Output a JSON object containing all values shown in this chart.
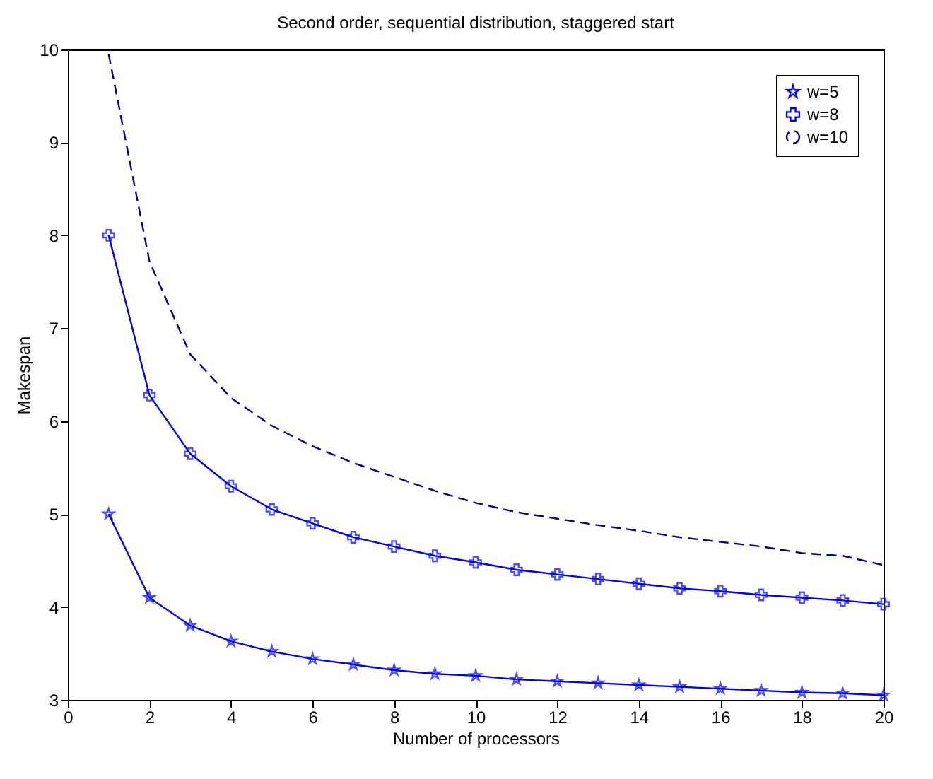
{
  "chart_data": {
    "type": "line",
    "title": "Second order, sequential distribution, staggered start",
    "xlabel": "Number of processors",
    "ylabel": "Makespan",
    "x": [
      1,
      2,
      3,
      4,
      5,
      6,
      7,
      8,
      9,
      10,
      11,
      12,
      13,
      14,
      15,
      16,
      17,
      18,
      19,
      20
    ],
    "xlim": [
      0,
      20
    ],
    "xticks": [
      0,
      2,
      4,
      6,
      8,
      10,
      12,
      14,
      16,
      18,
      20
    ],
    "ylim": [
      3,
      10
    ],
    "yticks": [
      3,
      4,
      5,
      6,
      7,
      8,
      9,
      10
    ],
    "legend": "top right",
    "grid": false,
    "series": [
      {
        "name": "w=5",
        "color": "#0000ff",
        "marker": "star",
        "line_style": "solid",
        "values": [
          5,
          4.1,
          3.8,
          3.63,
          3.52,
          3.44,
          3.38,
          3.32,
          3.28,
          3.26,
          3.22,
          3.2,
          3.18,
          3.16,
          3.14,
          3.12,
          3.1,
          3.08,
          3.07,
          3.05
        ]
      },
      {
        "name": "w=8",
        "color": "#0000ff",
        "marker": "cross",
        "line_style": "solid",
        "values": [
          8,
          6.28,
          5.65,
          5.3,
          5.05,
          4.9,
          4.75,
          4.65,
          4.55,
          4.48,
          4.4,
          4.35,
          4.3,
          4.25,
          4.2,
          4.17,
          4.13,
          4.1,
          4.07,
          4.03
        ]
      },
      {
        "name": "w=10",
        "color": "#00008b",
        "marker": "none",
        "line_style": "dashed",
        "values": [
          9.95,
          7.72,
          6.72,
          6.25,
          5.95,
          5.73,
          5.55,
          5.4,
          5.25,
          5.12,
          5.02,
          4.95,
          4.88,
          4.82,
          4.75,
          4.7,
          4.65,
          4.58,
          4.55,
          4.45
        ]
      }
    ]
  }
}
